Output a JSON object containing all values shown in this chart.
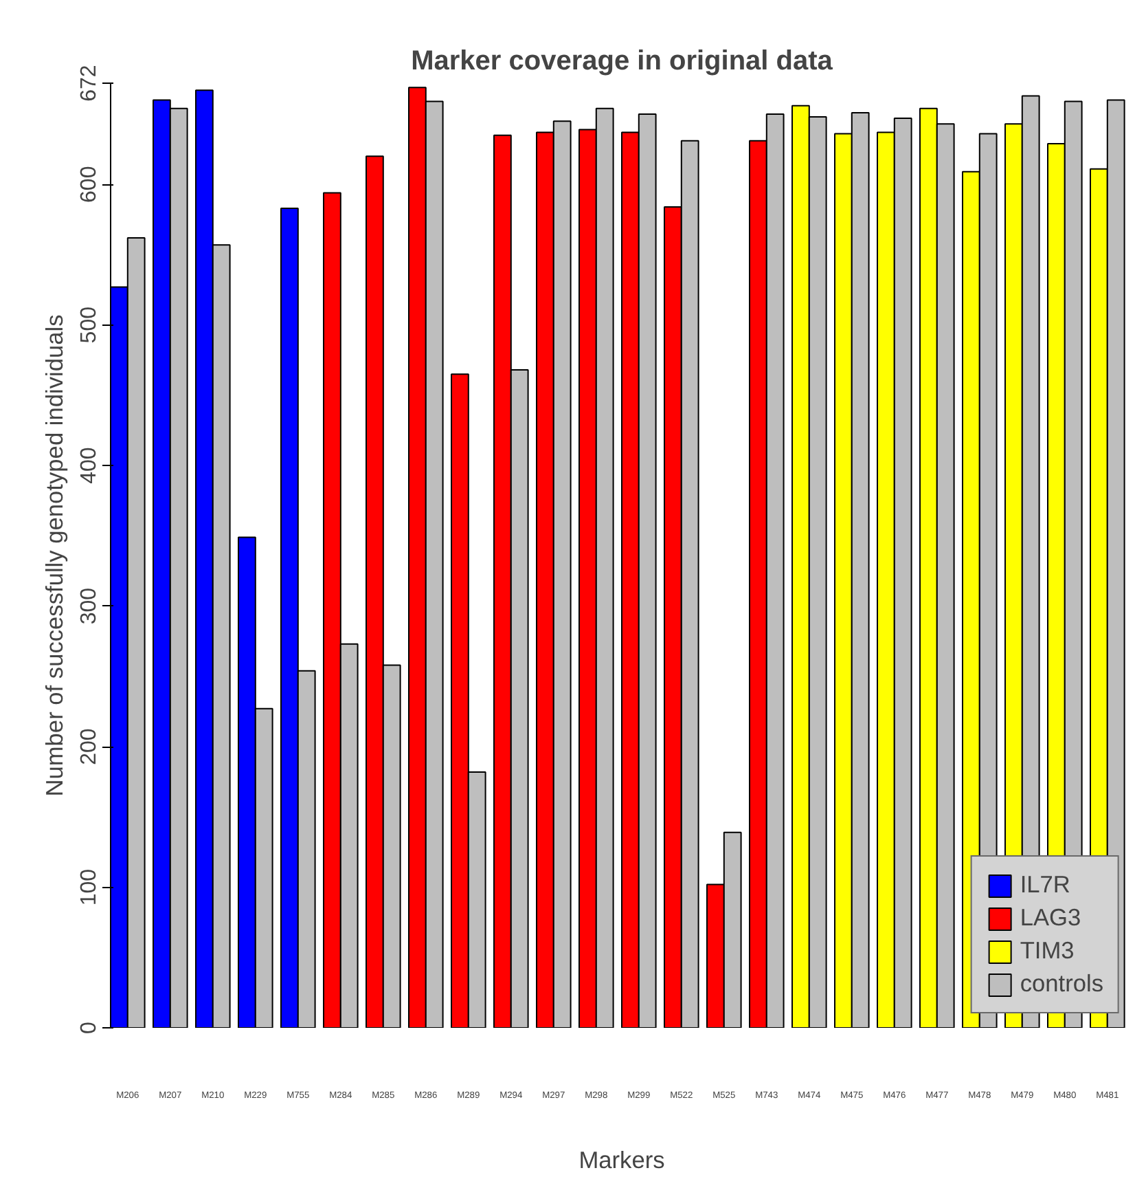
{
  "chart_data": {
    "type": "bar",
    "title": "Marker coverage in original data",
    "xlabel": "Markers",
    "ylabel": "Number of successfully genotyped individuals",
    "categories": [
      "M206",
      "M207",
      "M210",
      "M229",
      "M755",
      "M284",
      "M285",
      "M286",
      "M289",
      "M294",
      "M297",
      "M298",
      "M299",
      "M522",
      "M525",
      "M743",
      "M474",
      "M475",
      "M476",
      "M477",
      "M478",
      "M479",
      "M480",
      "M481"
    ],
    "series": [
      {
        "name": "IL7R",
        "color": "#0000ff",
        "values": [
          527,
          660,
          667,
          349,
          583,
          null,
          null,
          null,
          null,
          null,
          null,
          null,
          null,
          null,
          null,
          null,
          null,
          null,
          null,
          null,
          null,
          null,
          null,
          null
        ]
      },
      {
        "name": "LAG3",
        "color": "#ff0000",
        "values": [
          null,
          null,
          null,
          null,
          null,
          594,
          620,
          669,
          465,
          635,
          637,
          639,
          637,
          584,
          102,
          631,
          null,
          null,
          null,
          null,
          null,
          null,
          null,
          null
        ]
      },
      {
        "name": "TIM3",
        "color": "#ffff00",
        "values": [
          null,
          null,
          null,
          null,
          null,
          null,
          null,
          null,
          null,
          null,
          null,
          null,
          null,
          null,
          null,
          null,
          656,
          636,
          637,
          654,
          609,
          643,
          629,
          611
        ]
      },
      {
        "name": "controls",
        "color": "#bebebe",
        "values": [
          562,
          654,
          557,
          227,
          254,
          273,
          258,
          659,
          182,
          468,
          645,
          654,
          650,
          631,
          139,
          650,
          648,
          651,
          647,
          643,
          636,
          663,
          659,
          660
        ]
      }
    ],
    "ylim": [
      0,
      672
    ],
    "yticks": [
      0,
      100,
      200,
      300,
      400,
      500,
      600,
      672
    ],
    "grid": false,
    "legend": "bottom right"
  }
}
